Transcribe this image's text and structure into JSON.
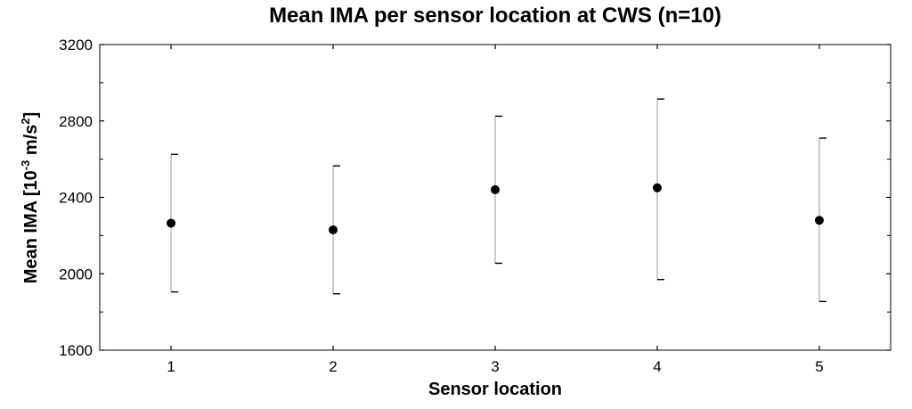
{
  "chart_data": {
    "type": "scatter",
    "title": "Mean IMA per sensor location at CWS (n=10)",
    "xlabel": "Sensor location",
    "ylabel": {
      "prefix": "Mean IMA [10",
      "exp1": "-3",
      "mid": " m/s",
      "exp2": "2",
      "suffix": "]"
    },
    "categories": [
      "1",
      "2",
      "3",
      "4",
      "5"
    ],
    "y_ticks": [
      1600,
      2000,
      2400,
      2800,
      3200
    ],
    "ylim": [
      1600,
      3200
    ],
    "grid": false,
    "series": [
      {
        "means": [
          2265,
          2230,
          2440,
          2450,
          2280
        ],
        "lower": [
          1905,
          1895,
          2055,
          1970,
          1855
        ],
        "upper": [
          2625,
          2565,
          2825,
          2915,
          2710
        ]
      }
    ],
    "colors": {
      "marker": "#000000",
      "errorbar": "#999999",
      "axes": "#000000"
    }
  }
}
